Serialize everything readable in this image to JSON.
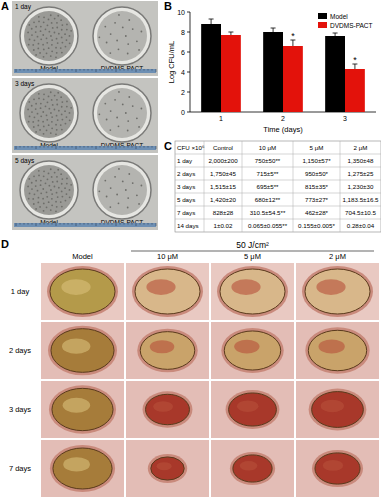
{
  "panel_a": {
    "panel_label": "A",
    "rows": [
      "1 day",
      "3 days",
      "5 days"
    ],
    "columns": [
      "Model",
      "DVDMS-PACT"
    ]
  },
  "chart_data": {
    "type": "bar",
    "panel_label": "B",
    "y_label": "Log CFU/mL",
    "x_label": "Time (days)",
    "categories": [
      "1",
      "2",
      "3"
    ],
    "series": [
      {
        "name": "Model",
        "color": "#000000",
        "values": [
          8.8,
          8.0,
          7.6
        ],
        "errors": [
          0.5,
          0.4,
          0.3
        ]
      },
      {
        "name": "DVDMS-PACT",
        "color": "#e3120b",
        "values": [
          7.7,
          6.6,
          4.3
        ],
        "errors": [
          0.3,
          0.6,
          0.5
        ]
      }
    ],
    "ylim": [
      0,
      10
    ],
    "yticks": [
      0,
      2,
      4,
      6,
      8,
      10
    ],
    "legend": "top-right",
    "annotations": [
      {
        "text": "*",
        "series": 1,
        "index": 1
      },
      {
        "text": "*",
        "series": 1,
        "index": 2
      }
    ]
  },
  "table": {
    "panel_label": "C",
    "header": [
      "CFU ×10⁶",
      "Control",
      "10 μM",
      "5 μM",
      "2 μM"
    ],
    "rows": [
      [
        "1 day",
        "2,000±200",
        "750±50**",
        "1,150±57*",
        "1,350±48"
      ],
      [
        "2 days",
        "1,750±45",
        "715±5**",
        "950±50*",
        "1,275±25"
      ],
      [
        "3 days",
        "1,515±15",
        "695±5**",
        "815±35*",
        "1,230±30"
      ],
      [
        "5 days",
        "1,420±20",
        "680±12**",
        "773±27*",
        "1,183.5±16.5"
      ],
      [
        "7 days",
        "828±28",
        "310.5±54.5**",
        "462±28*",
        "704.5±10.5"
      ],
      [
        "14 days",
        "1±0.02",
        "0.065±0.055**",
        "0.155±0.005*",
        "0.28±0.04"
      ]
    ]
  },
  "panel_d": {
    "panel_label": "D",
    "dose": "50 J/cm²",
    "columns": [
      "Model",
      "10 μM",
      "5 μM",
      "2 μM"
    ],
    "rows": [
      "1 day",
      "2 days",
      "3 days",
      "7 days"
    ]
  }
}
